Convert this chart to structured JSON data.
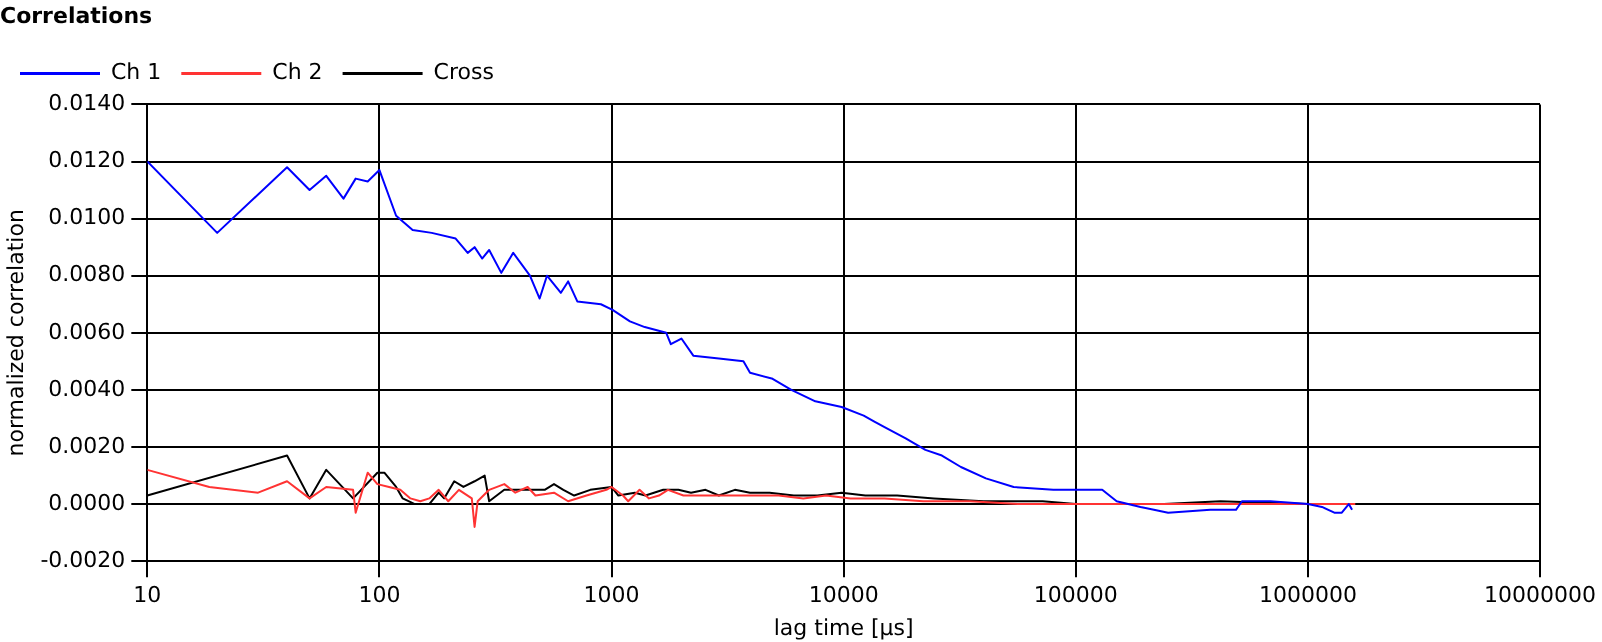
{
  "chart_data": {
    "type": "line",
    "title": "Correlations",
    "xlabel": "lag time [µs]",
    "ylabel": "normalized correlation",
    "log": "x",
    "xlim": [
      10,
      10000000
    ],
    "xticks": [
      10,
      100,
      1000,
      10000,
      100000,
      1000000,
      10000000
    ],
    "ylim": [
      -0.002,
      0.014
    ],
    "yticks": [
      {
        "value": -0.002,
        "label": "-0.0020"
      },
      {
        "value": 0,
        "label": "0.0000"
      },
      {
        "value": 0.002,
        "label": "0.0020"
      },
      {
        "value": 0.004,
        "label": "0.0040"
      },
      {
        "value": 0.006,
        "label": "0.0060"
      },
      {
        "value": 0.008,
        "label": "0.0080"
      },
      {
        "value": 0.01,
        "label": "0.0100"
      },
      {
        "value": 0.012,
        "label": "0.0120"
      },
      {
        "value": 0.014,
        "label": "0.0140"
      }
    ],
    "grid": true,
    "legend": "top left",
    "marker": "none",
    "line_style": "solid",
    "series": [
      {
        "name": "Ch 1",
        "color": "#0000ff",
        "x": [
          10,
          20,
          40,
          50,
          59,
          70,
          79,
          89,
          100,
          118,
          139,
          168,
          213,
          240,
          257,
          277,
          297,
          335,
          377,
          445,
          490,
          527,
          605,
          650,
          712,
          900,
          1010,
          1200,
          1390,
          1720,
          1800,
          2000,
          2250,
          2900,
          3700,
          3950,
          4900,
          5950,
          7550,
          9800,
          12200,
          13500,
          15000,
          18500,
          22500,
          26500,
          32000,
          41000,
          54000,
          80000,
          100000,
          130000,
          150000,
          190000,
          250000,
          380000,
          490000,
          520000,
          690000,
          1000000,
          1150000,
          1300000,
          1400000,
          1500000,
          1550000
        ],
        "values": [
          0.012,
          0.0095,
          0.0118,
          0.011,
          0.0115,
          0.0107,
          0.0114,
          0.0113,
          0.0117,
          0.0101,
          0.0096,
          0.0095,
          0.0093,
          0.0088,
          0.009,
          0.0086,
          0.0089,
          0.0081,
          0.0088,
          0.008,
          0.0072,
          0.008,
          0.0074,
          0.0078,
          0.0071,
          0.007,
          0.0068,
          0.0064,
          0.0062,
          0.006,
          0.0056,
          0.0058,
          0.0052,
          0.0051,
          0.005,
          0.0046,
          0.0044,
          0.004,
          0.0036,
          0.0034,
          0.0031,
          0.0029,
          0.0027,
          0.0023,
          0.0019,
          0.0017,
          0.0013,
          0.0009,
          0.0006,
          0.0005,
          0.0005,
          0.0005,
          0.0001,
          -0.0001,
          -0.0003,
          -0.0002,
          -0.0002,
          0.0001,
          0.0001,
          0.0,
          -0.0001,
          -0.0003,
          -0.0003,
          0.0,
          -0.0002
        ]
      },
      {
        "name": "Ch 2",
        "color": "#ff3333",
        "x": [
          10,
          18.5,
          30,
          40,
          50,
          59,
          77,
          79,
          89,
          98,
          110,
          123,
          136,
          150,
          164,
          180,
          198,
          220,
          250,
          257,
          265,
          297,
          345,
          385,
          435,
          470,
          565,
          650,
          780,
          950,
          1000,
          1120,
          1180,
          1320,
          1450,
          1600,
          1750,
          2040,
          2600,
          3300,
          4150,
          5250,
          6700,
          8400,
          10700,
          15000,
          22000,
          35000,
          57000,
          140000,
          470000,
          1600000
        ],
        "values": [
          0.0012,
          0.0006,
          0.0004,
          0.0008,
          0.0002,
          0.0006,
          0.0005,
          -0.0003,
          0.0011,
          0.0007,
          0.0006,
          0.0005,
          0.0002,
          0.0001,
          0.0002,
          0.0005,
          0.0001,
          0.0005,
          0.0002,
          -0.0008,
          0.0001,
          0.0005,
          0.0007,
          0.0004,
          0.0006,
          0.0003,
          0.0004,
          0.0001,
          0.0003,
          0.0005,
          0.0006,
          0.0003,
          0.0001,
          0.0005,
          0.0002,
          0.0003,
          0.0005,
          0.0003,
          0.0003,
          0.0003,
          0.0003,
          0.0003,
          0.0002,
          0.0003,
          0.0002,
          0.0002,
          0.0001,
          0.0001,
          0.0,
          0.0,
          0.0,
          0.0
        ]
      },
      {
        "name": "Cross",
        "color": "#000000",
        "x": [
          10,
          40,
          50,
          59,
          77,
          98,
          105,
          118,
          126,
          142,
          164,
          180,
          190,
          210,
          230,
          257,
          284,
          297,
          345,
          377,
          435,
          515,
          565,
          620,
          690,
          810,
          1000,
          1070,
          1260,
          1400,
          1670,
          1940,
          2200,
          2540,
          2900,
          3400,
          3950,
          4800,
          6100,
          7700,
          9800,
          12400,
          17000,
          24500,
          40000,
          72000,
          100000,
          240000,
          420000,
          1000000,
          1400000
        ],
        "values": [
          0.0003,
          0.0017,
          0.0002,
          0.0012,
          0.0002,
          0.0011,
          0.0011,
          0.0006,
          0.0002,
          0.0,
          0.0,
          0.0004,
          0.0002,
          0.0008,
          0.0006,
          0.0008,
          0.001,
          0.0001,
          0.0005,
          0.0005,
          0.0005,
          0.0005,
          0.0007,
          0.0005,
          0.0003,
          0.0005,
          0.0006,
          0.0003,
          0.0004,
          0.0003,
          0.0005,
          0.0005,
          0.0004,
          0.0005,
          0.0003,
          0.0005,
          0.0004,
          0.0004,
          0.0003,
          0.0003,
          0.0004,
          0.0003,
          0.0003,
          0.0002,
          0.0001,
          0.0001,
          0.0,
          0.0,
          0.0001,
          0.0,
          0.0
        ]
      }
    ]
  }
}
